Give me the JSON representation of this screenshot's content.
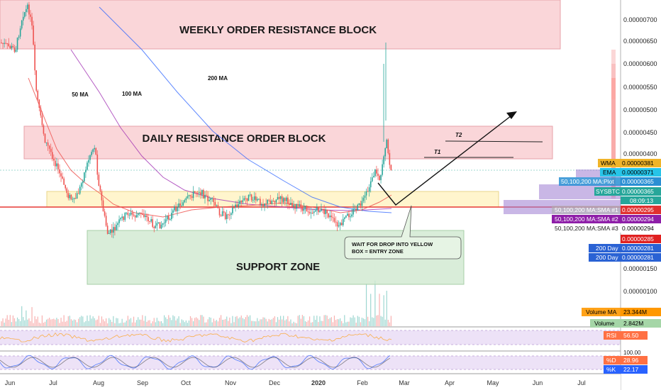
{
  "chart_data": {
    "type": "candlestick",
    "symbol": "SYSBTC",
    "price_axis": {
      "scale": "linear",
      "range": [
        2e-07,
        7.5e-07
      ],
      "ticks": [
        "0.00000700",
        "0.00000650",
        "0.00000600",
        "0.00000550",
        "0.00000500",
        "0.00000450",
        "0.00000400",
        "0.00000150",
        "0.00000100"
      ]
    },
    "time_axis": {
      "labels": [
        "Jun",
        "Jul",
        "Aug",
        "Sep",
        "Oct",
        "Nov",
        "Dec",
        "2020",
        "Feb",
        "Mar",
        "Apr",
        "May",
        "Jun",
        "Jul"
      ]
    },
    "zones": [
      {
        "label": "WEEKLY ORDER RESISTANCE BLOCK",
        "color": "#f8c8cc"
      },
      {
        "label": "DAILY RESISTANCE ORDER BLOCK",
        "color": "#f8c8cc"
      },
      {
        "label": "SUPPORT ZONE",
        "color": "#cfe8cf"
      },
      {
        "label": "",
        "color": "#fff3c4"
      }
    ],
    "ma_labels": [
      "50 MA",
      "100 MA",
      "200 MA"
    ],
    "targets": [
      "T2",
      "T1"
    ],
    "callout": [
      "WAIT FOR DROP INTO YELLOW",
      "BOX = ENTRY ZONE"
    ],
    "price_tags": [
      {
        "name": "WMA",
        "value": "0.00000381",
        "color": "#f0b429",
        "text_color": "#000000"
      },
      {
        "name": "EMA",
        "value": "0.00000371",
        "color": "#27c4e8",
        "text_color": "#000000"
      },
      {
        "name": "50,100,200 MA:Plot",
        "value": "0.00000365",
        "color": "#2a8fd4",
        "text_color": "#ffffff"
      },
      {
        "name": "SYSBTC",
        "value": "0.00000365",
        "color": "#26a69a",
        "text_color": "#ffffff"
      },
      {
        "name": "",
        "value": "08:09:13",
        "color": "#26a69a",
        "text_color": "#ffffff"
      },
      {
        "name": "50,100,200 MA:SMA #1",
        "value": "0.00000295",
        "color": "#e03030",
        "text_color": "#ffffff"
      },
      {
        "name": "50,100,200 MA:SMA #2",
        "value": "0.00000294",
        "color": "#8e1ea8",
        "text_color": "#ffffff"
      },
      {
        "name": "50,100,200 MA:SMA #3",
        "value": "0.00000294",
        "color": "#ffffff",
        "text_color": "#000000"
      },
      {
        "name": "",
        "value": "0.00000285",
        "color": "#e02020",
        "text_color": "#ffffff"
      },
      {
        "name": "200 Day",
        "value": "0.00000281",
        "color": "#2a62d4",
        "text_color": "#ffffff"
      },
      {
        "name": "200 Day",
        "value": "0.00000281",
        "color": "#2a62d4",
        "text_color": "#ffffff"
      }
    ],
    "volume": {
      "ma_label": "Volume MA",
      "ma_value": "23.344M",
      "label": "Volume",
      "value": "2.842M"
    },
    "rsi": {
      "label": "RSI",
      "value": "56.50"
    },
    "stoch": {
      "top_tick": "100.00",
      "d_label": "%D",
      "d_value": "28.96",
      "k_label": "%K",
      "k_value": "22.17"
    },
    "colors": {
      "up": "#26a69a",
      "down": "#ef5350",
      "ma50": "#ef5350",
      "ma100": "#9c27b0",
      "ma200": "#2962ff",
      "horizontal_line": "#e53935"
    }
  }
}
